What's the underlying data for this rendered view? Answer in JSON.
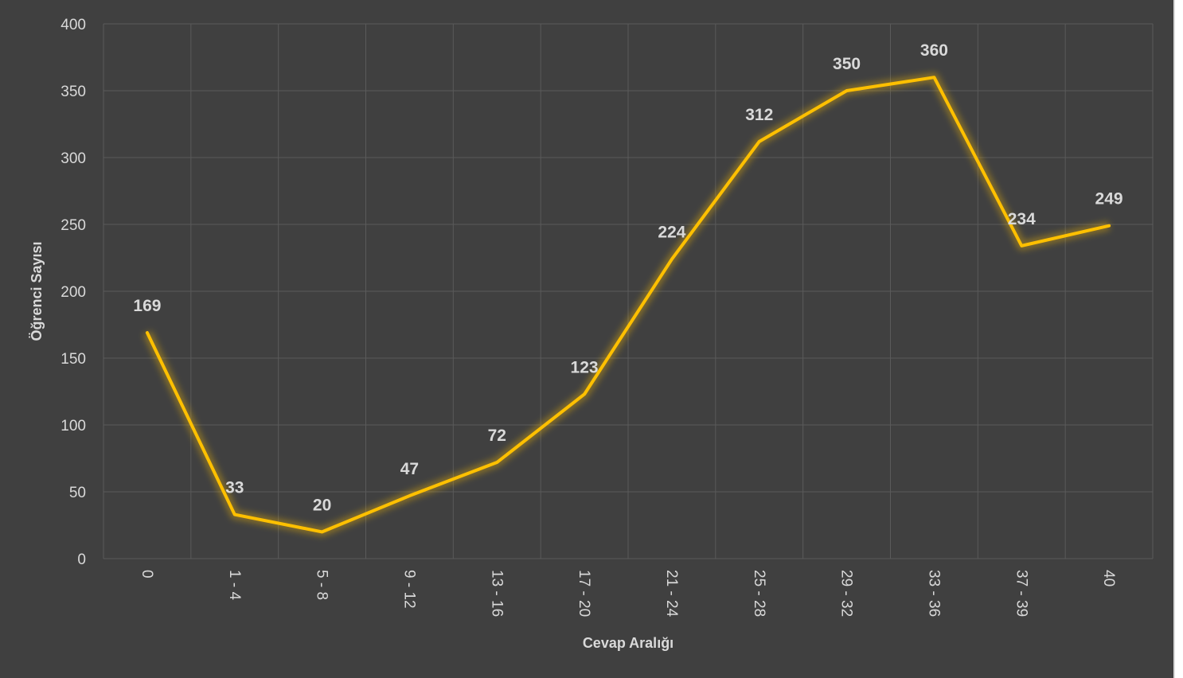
{
  "chart_data": {
    "type": "line",
    "categories": [
      "0",
      "1 - 4",
      "5 - 8",
      "9 - 12",
      "13 - 16",
      "17 - 20",
      "21 - 24",
      "25 - 28",
      "29 - 32",
      "33 - 36",
      "37 - 39",
      "40"
    ],
    "series": [
      {
        "values": [
          169,
          33,
          20,
          47,
          72,
          123,
          224,
          312,
          350,
          360,
          234,
          249
        ]
      }
    ],
    "xlabel": "Cevap Aralığı",
    "ylabel": "Öğrenci Sayısı",
    "ylim": [
      0,
      400
    ],
    "yticks": [
      "0",
      "50",
      "100",
      "150",
      "200",
      "250",
      "300",
      "350",
      "400"
    ],
    "grid": true,
    "line_color": "#ffc000",
    "background_color": "#404040",
    "text_color": "#d9d9d9"
  }
}
